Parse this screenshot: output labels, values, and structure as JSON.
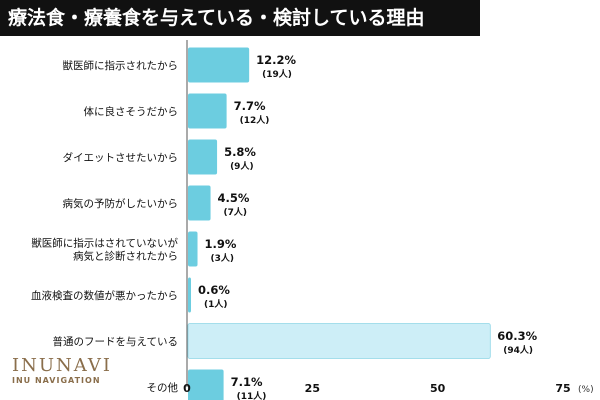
{
  "title": "療法食・療養食を与えている・検討している理由",
  "logo": {
    "main": "INUNAVI",
    "sub": "INU NAVIGATION"
  },
  "chart_data": {
    "type": "bar",
    "orientation": "horizontal",
    "categories": [
      [
        "獣医師に指示されたから"
      ],
      [
        "体に良さそうだから"
      ],
      [
        "ダイエットさせたいから"
      ],
      [
        "病気の予防がしたいから"
      ],
      [
        "獣医師に指示はされていないが",
        "病気と診断されたから"
      ],
      [
        "血液検査の数値が悪かったから"
      ],
      [
        "普通のフードを与えている"
      ],
      [
        "その他"
      ]
    ],
    "values": [
      12.2,
      7.7,
      5.8,
      4.5,
      1.9,
      0.6,
      60.3,
      7.1
    ],
    "value_labels": [
      "12.2%",
      "7.7%",
      "5.8%",
      "4.5%",
      "1.9%",
      "0.6%",
      "60.3%",
      "7.1%"
    ],
    "counts": [
      "(19人)",
      "(12人)",
      "(9人)",
      "(7人)",
      "(3人)",
      "(1人)",
      "(94人)",
      "(11人)"
    ],
    "xlim": [
      0,
      75
    ],
    "xticks": [
      "0",
      "25",
      "50",
      "75"
    ],
    "xunit": "(%)",
    "colors": {
      "bar": "#6ccde0",
      "bar_highlight": "#cdeef7",
      "bar_highlight_border": "#8fd6e6",
      "axis": "#555555"
    },
    "highlight_index": 6
  }
}
